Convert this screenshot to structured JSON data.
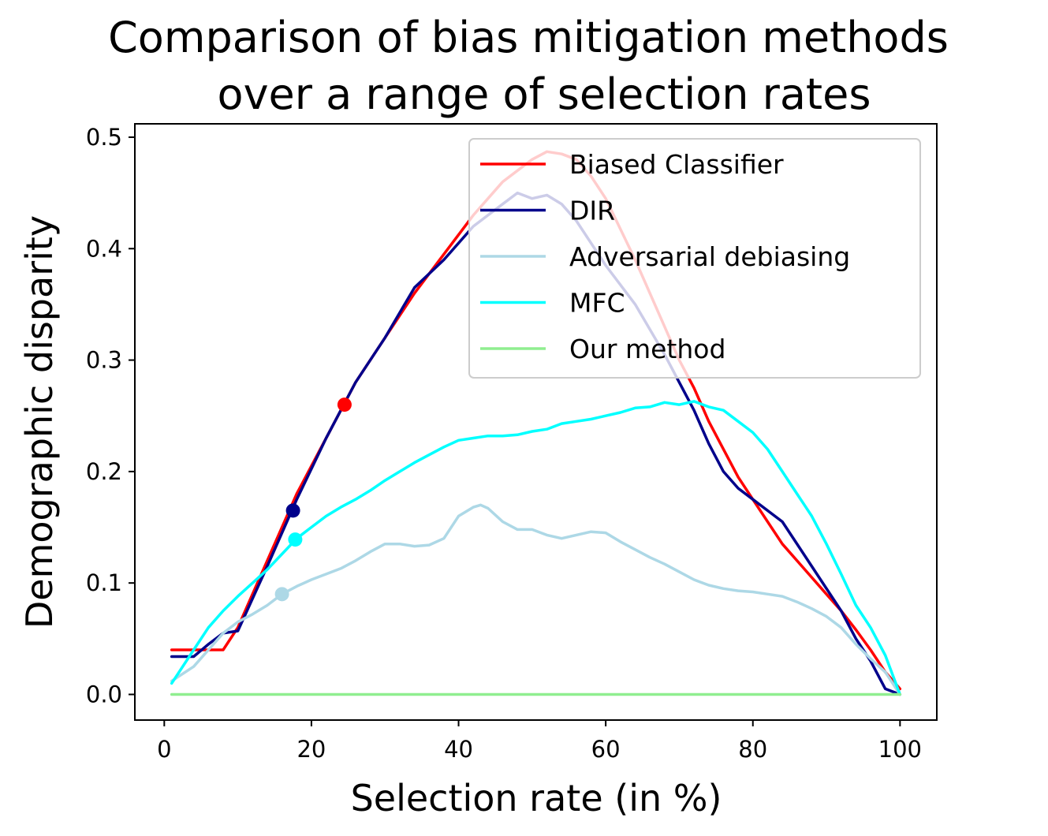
{
  "chart_data": {
    "type": "line",
    "title": [
      "Comparison of bias mitigation methods",
      "over a range of selection rates"
    ],
    "xlabel": "Selection rate (in %)",
    "ylabel": "Demographic disparity",
    "xlim": [
      -4,
      105
    ],
    "ylim": [
      -0.023,
      0.512
    ],
    "xticks": [
      0,
      20,
      40,
      60,
      80,
      100
    ],
    "xtick_labels": [
      "0",
      "20",
      "40",
      "60",
      "80",
      "100"
    ],
    "yticks": [
      0.0,
      0.1,
      0.2,
      0.3,
      0.4,
      0.5
    ],
    "ytick_labels": [
      "0.0",
      "0.1",
      "0.2",
      "0.3",
      "0.4",
      "0.5"
    ],
    "grid": false,
    "legend_position": "top-right",
    "series": [
      {
        "name": "Biased Classifier",
        "color": "#ff0000",
        "x": [
          1,
          8,
          10,
          14,
          18,
          22,
          26,
          30,
          34,
          38,
          42,
          46,
          50,
          52,
          54,
          56,
          58,
          60,
          64,
          68,
          70,
          72,
          74,
          76,
          78,
          80,
          84,
          88,
          90,
          92,
          94,
          96,
          98,
          100
        ],
        "y": [
          0.04,
          0.04,
          0.06,
          0.12,
          0.18,
          0.23,
          0.28,
          0.32,
          0.36,
          0.395,
          0.43,
          0.46,
          0.48,
          0.487,
          0.485,
          0.48,
          0.465,
          0.445,
          0.39,
          0.33,
          0.3,
          0.275,
          0.245,
          0.22,
          0.195,
          0.175,
          0.135,
          0.105,
          0.09,
          0.075,
          0.058,
          0.04,
          0.02,
          0.005
        ],
        "marker": {
          "x": 24.5,
          "y": 0.26
        }
      },
      {
        "name": "DIR",
        "color": "#00008b",
        "x": [
          1,
          4,
          6,
          8,
          10,
          14,
          18,
          22,
          26,
          30,
          34,
          38,
          42,
          46,
          48,
          50,
          52,
          54,
          56,
          58,
          60,
          64,
          68,
          70,
          72,
          74,
          76,
          78,
          80,
          84,
          88,
          92,
          94,
          96,
          98,
          100
        ],
        "y": [
          0.034,
          0.034,
          0.045,
          0.055,
          0.057,
          0.115,
          0.175,
          0.23,
          0.28,
          0.32,
          0.365,
          0.39,
          0.42,
          0.44,
          0.45,
          0.445,
          0.448,
          0.44,
          0.425,
          0.405,
          0.385,
          0.35,
          0.305,
          0.28,
          0.255,
          0.225,
          0.2,
          0.185,
          0.175,
          0.155,
          0.115,
          0.075,
          0.05,
          0.03,
          0.005,
          0.0
        ],
        "marker": {
          "x": 17.5,
          "y": 0.165
        }
      },
      {
        "name": "Adversarial debiasing",
        "color": "#add8e6",
        "x": [
          1,
          4,
          6,
          8,
          10,
          12,
          14,
          16,
          18,
          20,
          22,
          24,
          26,
          28,
          30,
          32,
          34,
          36,
          38,
          40,
          42,
          43,
          44,
          46,
          48,
          50,
          52,
          54,
          56,
          58,
          60,
          62,
          64,
          66,
          68,
          70,
          72,
          74,
          76,
          78,
          80,
          82,
          84,
          86,
          88,
          90,
          92,
          94,
          96,
          98,
          100
        ],
        "y": [
          0.012,
          0.025,
          0.04,
          0.055,
          0.065,
          0.072,
          0.08,
          0.09,
          0.097,
          0.103,
          0.108,
          0.113,
          0.12,
          0.128,
          0.135,
          0.135,
          0.133,
          0.134,
          0.14,
          0.16,
          0.168,
          0.17,
          0.167,
          0.155,
          0.148,
          0.148,
          0.143,
          0.14,
          0.143,
          0.146,
          0.145,
          0.137,
          0.13,
          0.123,
          0.117,
          0.11,
          0.103,
          0.098,
          0.095,
          0.093,
          0.092,
          0.09,
          0.088,
          0.083,
          0.077,
          0.07,
          0.06,
          0.045,
          0.032,
          0.02,
          0.0
        ],
        "marker": {
          "x": 16,
          "y": 0.09
        }
      },
      {
        "name": "MFC",
        "color": "#00ffff",
        "x": [
          1,
          4,
          6,
          8,
          10,
          12,
          14,
          16,
          18,
          20,
          22,
          24,
          26,
          28,
          30,
          32,
          34,
          36,
          38,
          40,
          42,
          44,
          46,
          48,
          50,
          52,
          54,
          56,
          58,
          60,
          62,
          64,
          66,
          68,
          70,
          72,
          74,
          76,
          78,
          80,
          82,
          84,
          86,
          88,
          90,
          92,
          94,
          96,
          98,
          100
        ],
        "y": [
          0.01,
          0.04,
          0.06,
          0.075,
          0.088,
          0.1,
          0.112,
          0.126,
          0.14,
          0.15,
          0.16,
          0.168,
          0.175,
          0.183,
          0.192,
          0.2,
          0.208,
          0.215,
          0.222,
          0.228,
          0.23,
          0.232,
          0.232,
          0.233,
          0.236,
          0.238,
          0.243,
          0.245,
          0.247,
          0.25,
          0.253,
          0.257,
          0.258,
          0.262,
          0.26,
          0.263,
          0.258,
          0.255,
          0.245,
          0.235,
          0.22,
          0.2,
          0.18,
          0.16,
          0.135,
          0.108,
          0.08,
          0.06,
          0.035,
          0.0
        ],
        "marker": {
          "x": 17.8,
          "y": 0.139
        }
      },
      {
        "name": "Our method",
        "color": "#90ee90",
        "x": [
          1,
          100
        ],
        "y": [
          0.0,
          0.0
        ],
        "marker": null
      }
    ]
  }
}
